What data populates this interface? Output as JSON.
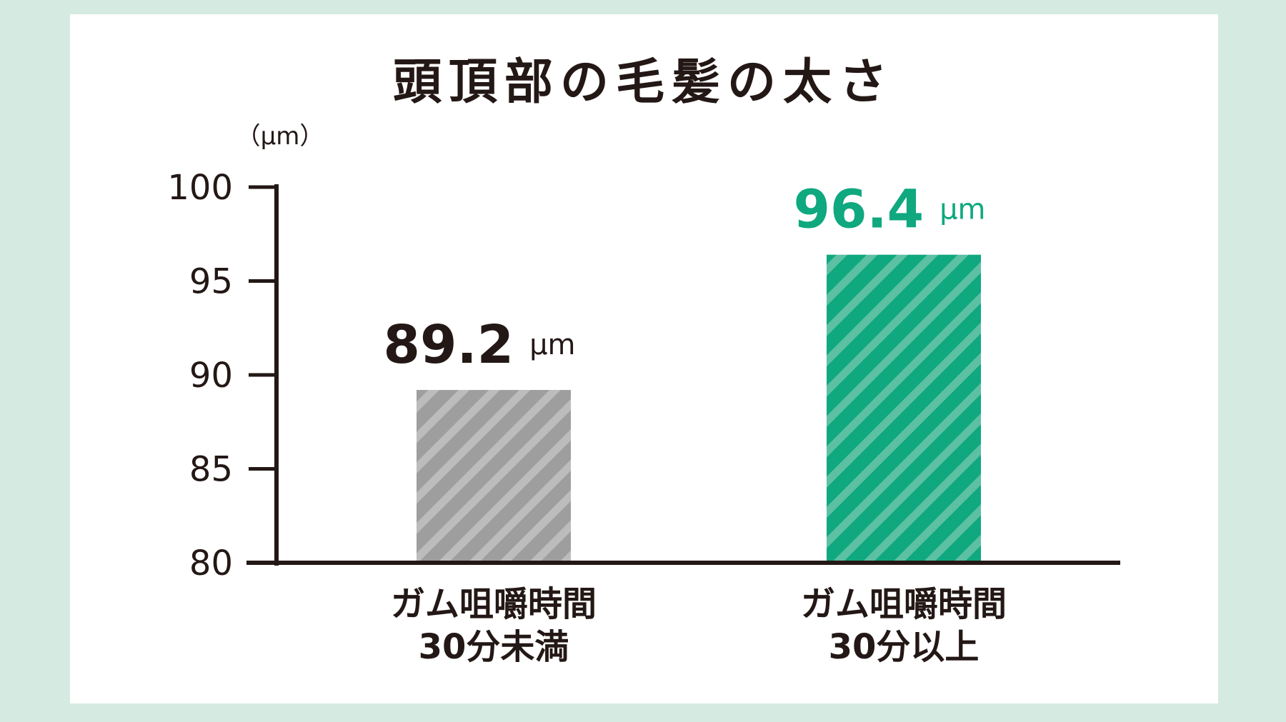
{
  "colors": {
    "background": "#d5ebe2",
    "panel": "#ffffff",
    "axis": "#231815",
    "gray_bar": "#9e9e9e",
    "gray_stripe": "#bcbcbc",
    "green_bar": "#0fa87f",
    "green_stripe": "#5cc0a2",
    "green_label": "#0fa87f"
  },
  "chart_data": {
    "type": "bar",
    "title": "頭頂部の毛髪の太さ",
    "ylabel": "（µm）",
    "xlabel": "",
    "ylim": [
      80,
      100
    ],
    "yticks": [
      "80",
      "85",
      "90",
      "95",
      "100"
    ],
    "categories": [
      {
        "line1": "ガム咀嚼時間",
        "line2": "30分未満"
      },
      {
        "line1": "ガム咀嚼時間",
        "line2": "30分以上"
      }
    ],
    "values": [
      89.2,
      96.4
    ],
    "data_labels": [
      {
        "value": "89.2",
        "unit": "µm"
      },
      {
        "value": "96.4",
        "unit": "µm"
      }
    ],
    "bar_fill": [
      "gray-striped",
      "green-striped"
    ],
    "grid": false,
    "legend": "none"
  }
}
